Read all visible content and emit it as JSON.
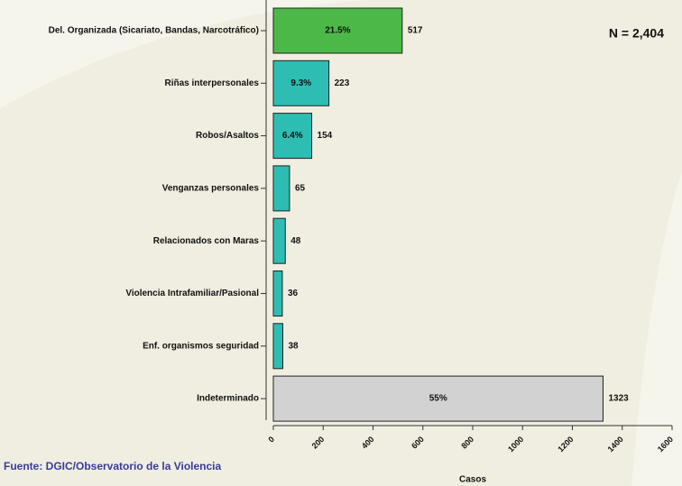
{
  "chart_data": {
    "type": "bar",
    "orientation": "horizontal",
    "categories": [
      "Del. Organizada (Sicariato, Bandas, Narcotráfico)",
      "Riñas interpersonales",
      "Robos/Asaltos",
      "Venganzas personales",
      "Relacionados con Maras",
      "Violencia Intrafamiliar/Pasional",
      "Enf. organismos seguridad",
      "Indeterminado"
    ],
    "values": [
      517,
      223,
      154,
      65,
      48,
      36,
      38,
      1323
    ],
    "percent_labels": [
      "21.5%",
      "9.3%",
      "6.4%",
      null,
      null,
      null,
      null,
      "55%"
    ],
    "colors": [
      "#4cb848",
      "#2ebdb3",
      "#2ebdb3",
      "#2ebdb3",
      "#2ebdb3",
      "#2ebdb3",
      "#2ebdb3",
      "#d2d2d2"
    ],
    "xlim": [
      0,
      1600
    ],
    "xticks": [
      0,
      200,
      400,
      600,
      800,
      1000,
      1200,
      1400,
      1600
    ],
    "xlabel": "Casos",
    "annotation": "N = 2,404",
    "source": "Fuente: DGIC/Observatorio de la Violencia"
  }
}
